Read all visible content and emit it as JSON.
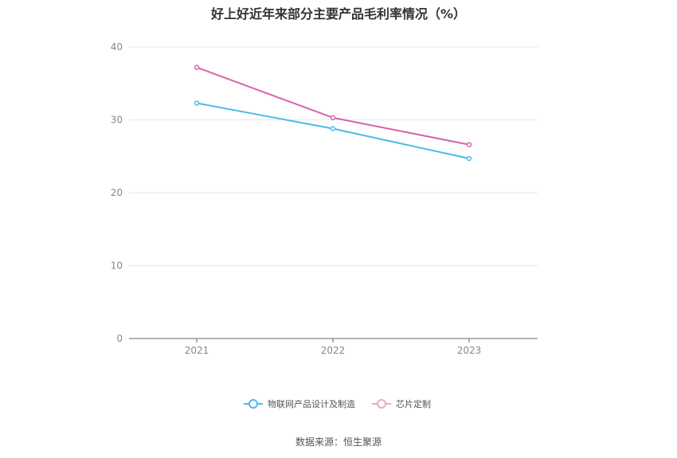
{
  "chart_data": {
    "type": "line",
    "title": "好上好近年来部分主要产品毛利率情况（%）",
    "categories": [
      "2021",
      "2022",
      "2023"
    ],
    "series": [
      {
        "name": "物联网产品设计及制造",
        "values": [
          32.3,
          28.8,
          24.7
        ],
        "color": "#4FB9EC"
      },
      {
        "name": "芯片定制",
        "values": [
          37.2,
          30.3,
          26.6
        ],
        "color": "#D466A8"
      }
    ],
    "ylim": [
      0,
      40
    ],
    "yticks": [
      0,
      10,
      20,
      30,
      40
    ],
    "grid": true,
    "legend": "bottom-center"
  },
  "source": "数据来源：恒生聚源"
}
